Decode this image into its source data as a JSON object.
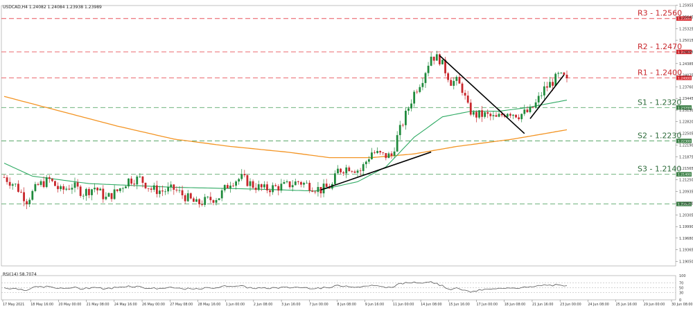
{
  "title_bar": "USDCAD,H4  1.24082 1.24084 1.23938 1.23989",
  "rsi_title": "RSI(14) 58.7074",
  "colors": {
    "bull": "#1f8a3c",
    "bear": "#c8262b",
    "sma_fast": "#2eaa63",
    "sma_slow": "#f39423",
    "resistance": "#e8545b",
    "support": "#5aa86a",
    "trendline": "#000000",
    "rsi": "#555555"
  },
  "chart_data": {
    "type": "candlestick",
    "symbol": "USDCAD",
    "timeframe": "H4",
    "ylim": [
      1.1893,
      1.2595
    ],
    "y_ticks": [
      "1.25955",
      "1.25645",
      "1.25325",
      "1.25015",
      "1.24695",
      "1.24385",
      "1.24075",
      "1.23760",
      "1.23445",
      "1.23130",
      "1.22820",
      "1.22505",
      "1.22190",
      "1.21875",
      "1.21565",
      "1.21250",
      "1.20935",
      "1.20620",
      "1.20305",
      "1.19990",
      "1.19680",
      "1.19365",
      "1.19050"
    ],
    "x_ticks": [
      "17 May 2021",
      "18 May 16:00",
      "20 May 00:00",
      "21 May 08:00",
      "24 May 16:00",
      "26 May 00:00",
      "27 May 08:00",
      "28 May 16:00",
      "1 Jun 00:00",
      "2 Jun 08:00",
      "3 Jun 16:00",
      "7 Jun 00:00",
      "8 Jun 08:00",
      "9 Jun 16:00",
      "11 Jun 00:00",
      "14 Jun 08:00",
      "15 Jun 16:00",
      "17 Jun 00:00",
      "18 Jun 08:00",
      "21 Jun 16:00",
      "23 Jun 00:00",
      "24 Jun 08:00",
      "25 Jun 16:00",
      "29 Jun 00:00",
      "30 Jun 08:00"
    ],
    "levels": [
      {
        "label": "R3 - 1.2560",
        "value": 1.256,
        "tag": "1.25600",
        "kind": "resistance"
      },
      {
        "label": "R2 - 1.2470",
        "value": 1.247,
        "tag": "1.24700",
        "kind": "resistance"
      },
      {
        "label": "R1 - 1.2400",
        "value": 1.24,
        "tag": "1.24000",
        "kind": "resistance"
      },
      {
        "label": "S1 - 1.2320",
        "value": 1.232,
        "tag": "1.23200",
        "kind": "support"
      },
      {
        "label": "S2 - 1.2230",
        "value": 1.223,
        "tag": "1.22300",
        "kind": "support"
      },
      {
        "label": "S3 - 1.2140",
        "value": 1.214,
        "tag": "1.21400",
        "kind": "support"
      },
      {
        "label": "",
        "value": 1.206,
        "tag": "1.20600",
        "kind": "support"
      }
    ],
    "bar_count": 200,
    "close_keypoints": [
      [
        0,
        1.2132
      ],
      [
        4,
        1.211
      ],
      [
        8,
        1.207
      ],
      [
        12,
        1.211
      ],
      [
        16,
        1.2125
      ],
      [
        20,
        1.2095
      ],
      [
        24,
        1.211
      ],
      [
        28,
        1.209
      ],
      [
        32,
        1.2105
      ],
      [
        36,
        1.2075
      ],
      [
        40,
        1.2095
      ],
      [
        44,
        1.2125
      ],
      [
        48,
        1.2128
      ],
      [
        52,
        1.21
      ],
      [
        56,
        1.2095
      ],
      [
        60,
        1.21
      ],
      [
        64,
        1.208
      ],
      [
        68,
        1.206
      ],
      [
        72,
        1.207
      ],
      [
        76,
        1.208
      ],
      [
        80,
        1.212
      ],
      [
        84,
        1.213
      ],
      [
        88,
        1.211
      ],
      [
        92,
        1.21
      ],
      [
        96,
        1.2105
      ],
      [
        100,
        1.211
      ],
      [
        104,
        1.212
      ],
      [
        108,
        1.211
      ],
      [
        112,
        1.2098
      ],
      [
        116,
        1.211
      ],
      [
        118,
        1.215
      ],
      [
        122,
        1.216
      ],
      [
        126,
        1.215
      ],
      [
        130,
        1.22
      ],
      [
        134,
        1.219
      ],
      [
        137,
        1.219
      ],
      [
        139,
        1.224
      ],
      [
        142,
        1.23
      ],
      [
        145,
        1.236
      ],
      [
        148,
        1.24
      ],
      [
        151,
        1.246
      ],
      [
        154,
        1.245
      ],
      [
        156,
        1.242
      ],
      [
        158,
        1.239
      ],
      [
        160,
        1.239
      ],
      [
        162,
        1.237
      ],
      [
        164,
        1.232
      ],
      [
        166,
        1.23
      ],
      [
        170,
        1.23
      ],
      [
        174,
        1.229
      ],
      [
        178,
        1.231
      ],
      [
        182,
        1.23
      ],
      [
        186,
        1.231
      ],
      [
        188,
        1.233
      ],
      [
        191,
        1.237
      ],
      [
        194,
        1.239
      ],
      [
        196,
        1.2405
      ],
      [
        198,
        1.24
      ],
      [
        199,
        1.23989
      ]
    ],
    "sma_fast_keypoints": [
      [
        0,
        1.217
      ],
      [
        10,
        1.2135
      ],
      [
        30,
        1.2115
      ],
      [
        60,
        1.2105
      ],
      [
        90,
        1.21
      ],
      [
        110,
        1.2095
      ],
      [
        125,
        1.212
      ],
      [
        135,
        1.216
      ],
      [
        145,
        1.224
      ],
      [
        155,
        1.2295
      ],
      [
        165,
        1.231
      ],
      [
        175,
        1.231
      ],
      [
        185,
        1.232
      ],
      [
        199,
        1.234
      ]
    ],
    "sma_slow_keypoints": [
      [
        0,
        1.235
      ],
      [
        20,
        1.231
      ],
      [
        40,
        1.227
      ],
      [
        60,
        1.2235
      ],
      [
        80,
        1.2215
      ],
      [
        100,
        1.22
      ],
      [
        115,
        1.2185
      ],
      [
        130,
        1.2185
      ],
      [
        145,
        1.2195
      ],
      [
        160,
        1.2215
      ],
      [
        180,
        1.2235
      ],
      [
        199,
        1.226
      ]
    ],
    "trendlines": [
      {
        "from": [
          112,
          1.2098
        ],
        "to": [
          151,
          1.22
        ]
      },
      {
        "from": [
          154,
          1.246
        ],
        "to": [
          184,
          1.225
        ]
      },
      {
        "from": [
          186,
          1.229
        ],
        "to": [
          198,
          1.2408
        ]
      }
    ],
    "rsi": {
      "value": 58.7074,
      "ticks": [
        "100",
        "70",
        "50",
        "30",
        "0"
      ],
      "levels": [
        70,
        50,
        30
      ]
    }
  }
}
